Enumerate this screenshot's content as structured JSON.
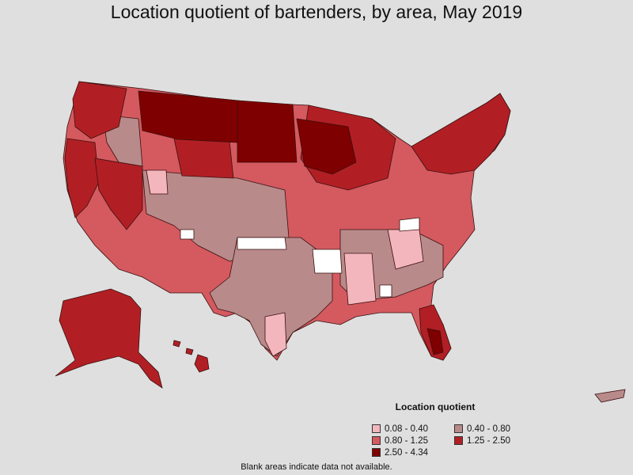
{
  "title": "Location quotient of bartenders, by area, May 2019",
  "legend": {
    "title": "Location quotient",
    "items": [
      {
        "label": "0.08 - 0.40",
        "color": "#f4b6bd"
      },
      {
        "label": "0.40 - 0.80",
        "color": "#b88a8a"
      },
      {
        "label": "0.80 - 1.25",
        "color": "#d45a60"
      },
      {
        "label": "1.25 - 2.50",
        "color": "#b11f24"
      },
      {
        "label": "2.50 - 4.34",
        "color": "#7f0000"
      }
    ]
  },
  "footnote": "Blank areas indicate data not available."
}
